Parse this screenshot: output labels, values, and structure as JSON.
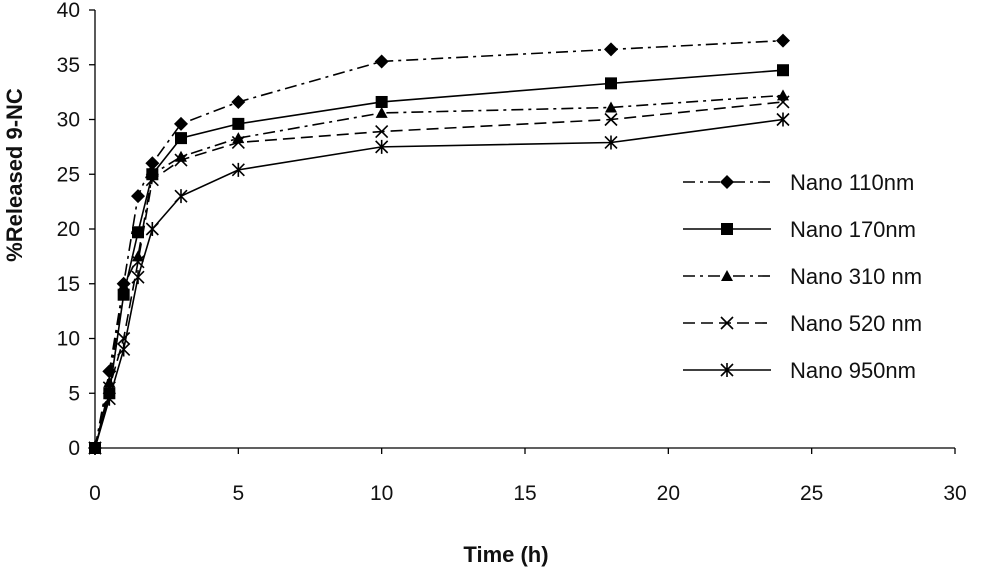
{
  "chart_data": {
    "type": "line",
    "title": "",
    "xlabel": "Time (h)",
    "ylabel": "%Released 9-NC",
    "xlim": [
      0,
      30
    ],
    "ylim": [
      0,
      40
    ],
    "xticks": [
      0,
      5,
      10,
      15,
      20,
      25,
      30
    ],
    "yticks": [
      0,
      5,
      10,
      15,
      20,
      25,
      30,
      35,
      40
    ],
    "grid": false,
    "legend_position": "right",
    "series": [
      {
        "name": "Nano 110nm",
        "marker": "diamond",
        "dash": "dashdot",
        "x": [
          0,
          0.5,
          1,
          1.5,
          2,
          3,
          5,
          10,
          18,
          24
        ],
        "y": [
          0,
          7,
          15,
          23,
          26,
          29.6,
          31.6,
          35.3,
          36.4,
          37.2
        ]
      },
      {
        "name": "Nano 170nm",
        "marker": "square",
        "dash": "solid",
        "x": [
          0,
          0.5,
          1,
          1.5,
          2,
          3,
          5,
          10,
          18,
          24
        ],
        "y": [
          0,
          5,
          14,
          19.7,
          25,
          28.3,
          29.6,
          31.6,
          33.3,
          34.5
        ]
      },
      {
        "name": "Nano 310 nm",
        "marker": "triangle",
        "dash": "dashdot",
        "x": [
          0,
          0.5,
          1,
          1.5,
          2,
          3,
          5,
          10,
          18,
          24
        ],
        "y": [
          0,
          6,
          14.8,
          17.5,
          25,
          26.6,
          28.3,
          30.6,
          31.1,
          32.2
        ]
      },
      {
        "name": "Nano 520 nm",
        "marker": "x",
        "dash": "dashed",
        "x": [
          0,
          0.5,
          1,
          1.5,
          2,
          3,
          5,
          10,
          18,
          24
        ],
        "y": [
          0,
          5.5,
          10,
          17,
          24.5,
          26.3,
          27.9,
          28.9,
          30,
          31.6
        ]
      },
      {
        "name": "Nano 950nm",
        "marker": "asterisk",
        "dash": "solid",
        "x": [
          0,
          0.5,
          1,
          1.5,
          2,
          3,
          5,
          10,
          18,
          24
        ],
        "y": [
          0,
          4.5,
          9,
          15.6,
          20,
          23,
          25.4,
          27.5,
          27.9,
          30
        ]
      }
    ]
  }
}
